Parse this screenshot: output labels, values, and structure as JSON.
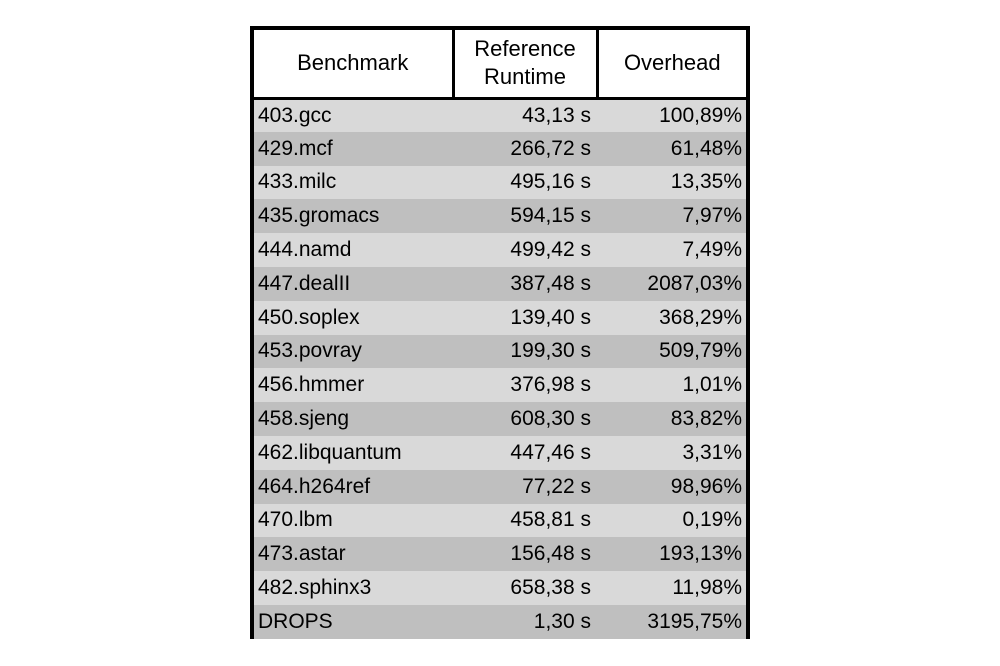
{
  "table": {
    "headers": [
      "Benchmark",
      "Reference Runtime",
      "Overhead"
    ],
    "rows": [
      [
        "403.gcc",
        "43,13 s",
        "100,89%"
      ],
      [
        "429.mcf",
        "266,72 s",
        "61,48%"
      ],
      [
        "433.milc",
        "495,16 s",
        "13,35%"
      ],
      [
        "435.gromacs",
        "594,15 s",
        "7,97%"
      ],
      [
        "444.namd",
        "499,42 s",
        "7,49%"
      ],
      [
        "447.dealII",
        "387,48 s",
        "2087,03%"
      ],
      [
        "450.soplex",
        "139,40 s",
        "368,29%"
      ],
      [
        "453.povray",
        "199,30 s",
        "509,79%"
      ],
      [
        "456.hmmer",
        "376,98 s",
        "1,01%"
      ],
      [
        "458.sjeng",
        "608,30 s",
        "83,82%"
      ],
      [
        "462.libquantum",
        "447,46 s",
        "3,31%"
      ],
      [
        "464.h264ref",
        "77,22 s",
        "98,96%"
      ],
      [
        "470.lbm",
        "458,81 s",
        "0,19%"
      ],
      [
        "473.astar",
        "156,48 s",
        "193,13%"
      ],
      [
        "482.sphinx3",
        "658,38 s",
        "11,98%"
      ],
      [
        "DROPS",
        "1,30 s",
        "3195,75%"
      ]
    ]
  },
  "colors": {
    "row_light": "#d9d9d9",
    "row_dark": "#bfbfbf",
    "border": "#000000",
    "header_bg": "#ffffff"
  }
}
